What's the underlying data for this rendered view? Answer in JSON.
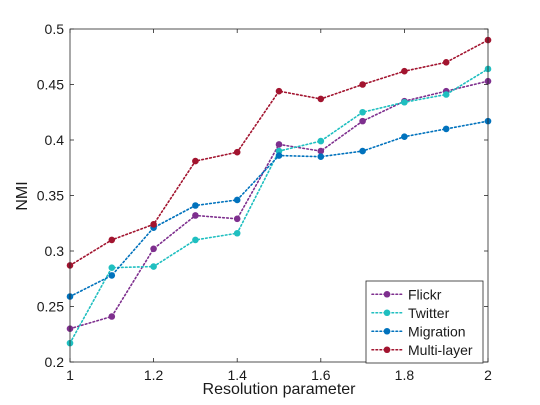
{
  "chart_data": {
    "type": "line",
    "title": "",
    "xlabel": "Resolution parameter",
    "ylabel": "NMI",
    "xlim": [
      1,
      2
    ],
    "ylim": [
      0.2,
      0.5
    ],
    "xticks": [
      1,
      1.2,
      1.4,
      1.6,
      1.8,
      2
    ],
    "xtick_labels": [
      "1",
      "1.2",
      "1.4",
      "1.6",
      "1.8",
      "2"
    ],
    "yticks": [
      0.2,
      0.25,
      0.3,
      0.35,
      0.4,
      0.45,
      0.5
    ],
    "ytick_labels": [
      "0.2",
      "0.25",
      "0.3",
      "0.35",
      "0.4",
      "0.45",
      "0.5"
    ],
    "grid": false,
    "legend_position": "bottom-right",
    "line_style": "dotted",
    "x": [
      1,
      1.1,
      1.2,
      1.3,
      1.4,
      1.5,
      1.6,
      1.7,
      1.8,
      1.9,
      2
    ],
    "series": [
      {
        "name": "Flickr",
        "color": "#7e2f8e",
        "values": [
          0.23,
          0.241,
          0.302,
          0.332,
          0.329,
          0.396,
          0.39,
          0.417,
          0.435,
          0.444,
          0.453
        ]
      },
      {
        "name": "Twitter",
        "color": "#1fbfc0",
        "values": [
          0.217,
          0.285,
          0.286,
          0.31,
          0.316,
          0.39,
          0.399,
          0.425,
          0.434,
          0.441,
          0.464
        ]
      },
      {
        "name": "Migration",
        "color": "#0072bd",
        "values": [
          0.259,
          0.278,
          0.321,
          0.341,
          0.346,
          0.386,
          0.385,
          0.39,
          0.403,
          0.41,
          0.417
        ]
      },
      {
        "name": "Multi-layer",
        "color": "#a2142f",
        "values": [
          0.287,
          0.31,
          0.324,
          0.381,
          0.389,
          0.444,
          0.437,
          0.45,
          0.462,
          0.47,
          0.49
        ]
      }
    ]
  }
}
